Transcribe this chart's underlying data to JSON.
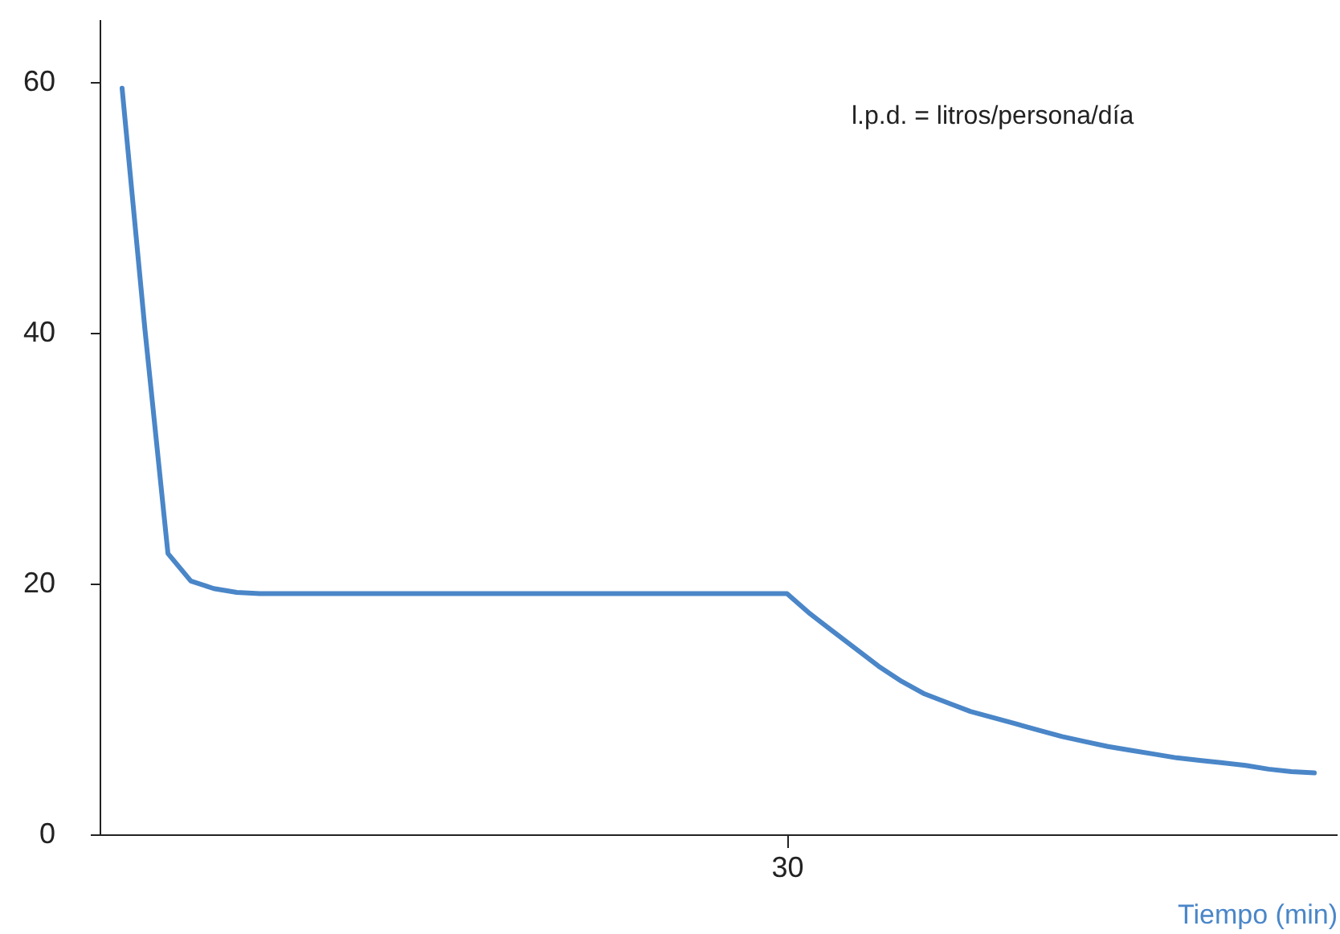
{
  "chart_data": {
    "type": "line",
    "xlabel": "Tiempo (min)",
    "annotations": [
      "l.p.d. = litros/persona/día"
    ],
    "categories": [
      null,
      null,
      null,
      null,
      null,
      null,
      null,
      null,
      null,
      null,
      null,
      null,
      null,
      null,
      null,
      null,
      null,
      null,
      null,
      null,
      null,
      null,
      null,
      null,
      null,
      null,
      null,
      null,
      null,
      "30",
      null,
      null,
      null,
      null,
      null,
      null,
      null,
      null,
      null,
      null,
      null,
      null,
      null,
      null,
      null,
      null,
      null,
      null,
      null,
      null,
      null,
      null,
      null
    ],
    "series": [
      {
        "color": "#4a86c8",
        "values": [
          59.5,
          40.2,
          22.4,
          20.2,
          19.6,
          19.3,
          19.2,
          19.2,
          19.2,
          19.2,
          19.2,
          19.2,
          19.2,
          19.2,
          19.2,
          19.2,
          19.2,
          19.2,
          19.2,
          19.2,
          19.2,
          19.2,
          19.2,
          19.2,
          19.2,
          19.2,
          19.2,
          19.2,
          19.2,
          19.2,
          17.6,
          16.2,
          14.8,
          13.4,
          12.2,
          11.2,
          10.5,
          9.8,
          9.3,
          8.8,
          8.3,
          7.8,
          7.4,
          7.0,
          6.7,
          6.4,
          6.1,
          5.9,
          5.7,
          5.5,
          5.2,
          5.0,
          4.9
        ]
      }
    ],
    "ylim": [
      0,
      65
    ],
    "yticks": [
      0,
      20,
      40,
      60
    ],
    "grid": false,
    "marker": "none",
    "line_style": "solid"
  }
}
